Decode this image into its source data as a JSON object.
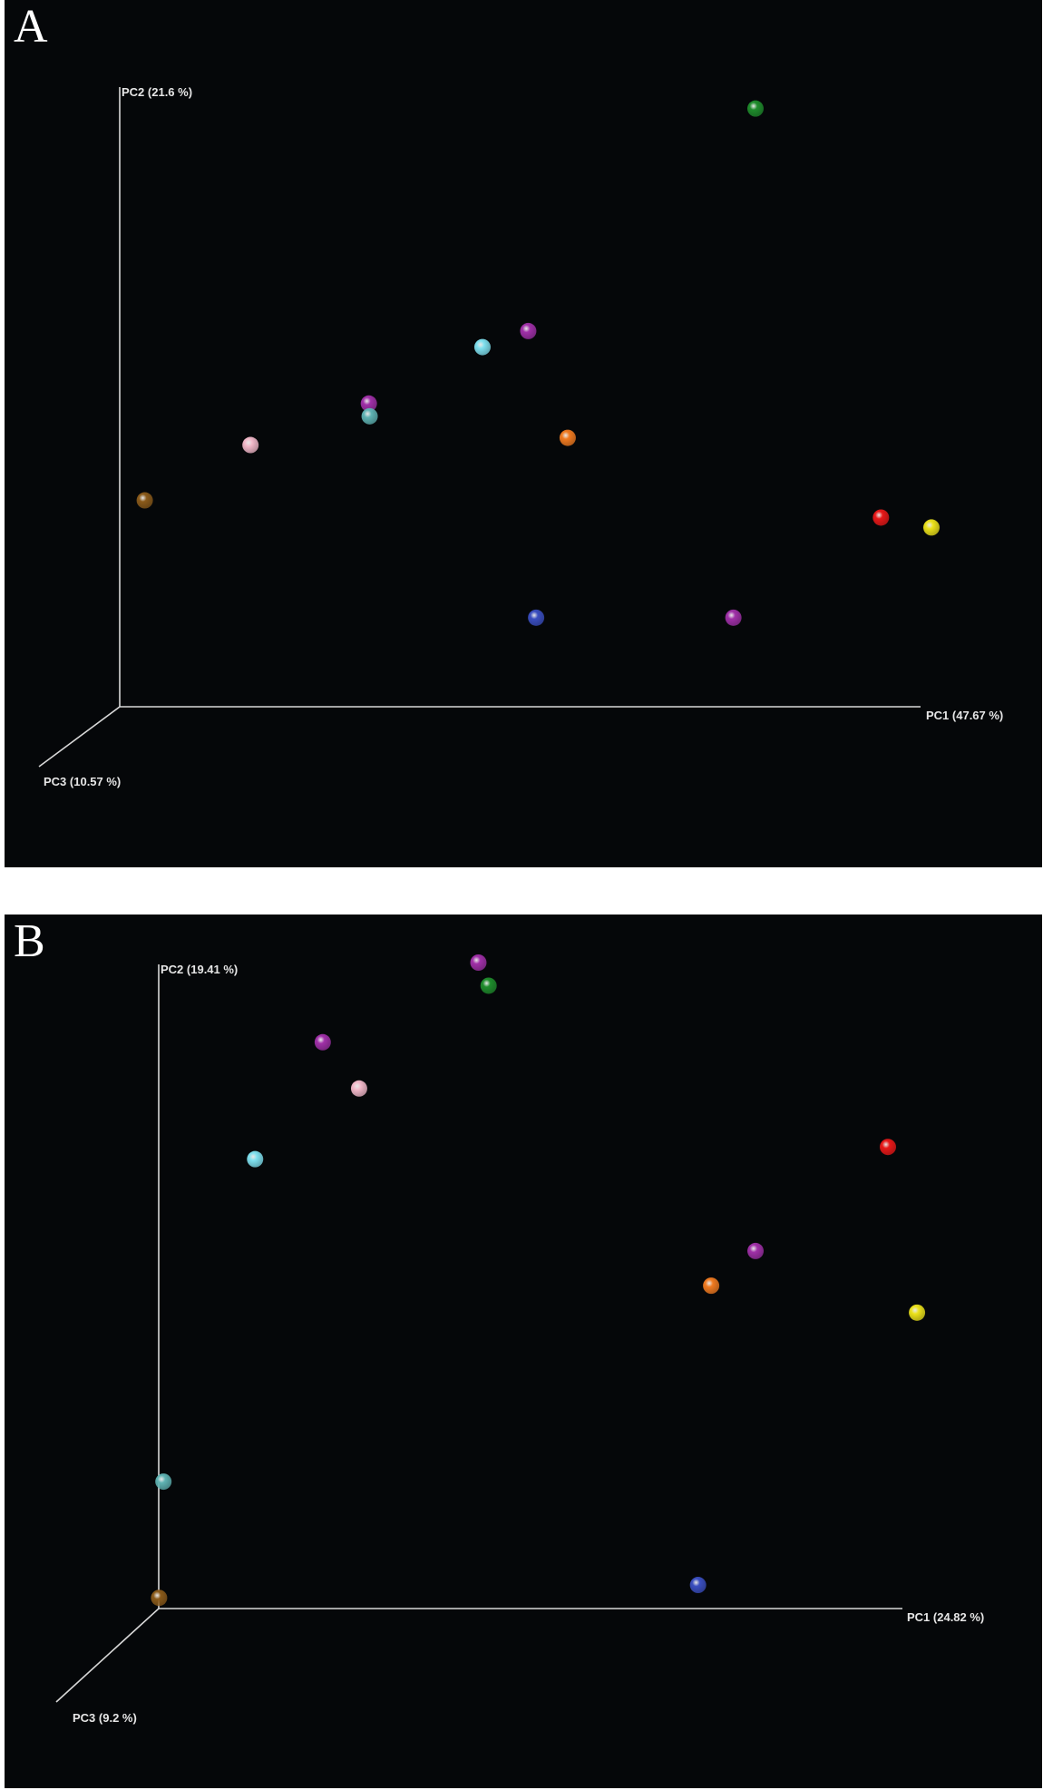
{
  "chart_data": [
    {
      "panel": "A",
      "type": "scatter",
      "axes": {
        "pc1": "PC1 (47.67 %)",
        "pc2": "PC2 (21.6 %)",
        "pc3": "PC3 (10.57 %)"
      },
      "xlim": [
        0,
        1
      ],
      "ylim": [
        0,
        1
      ],
      "points": [
        {
          "x": 0.777,
          "y": 0.994,
          "color": "#1f8c2c"
        },
        {
          "x": 0.489,
          "y": 0.592,
          "color": "#a030a8"
        },
        {
          "x": 0.431,
          "y": 0.563,
          "color": "#7fe0ef"
        },
        {
          "x": 0.287,
          "y": 0.461,
          "color": "#a030a8"
        },
        {
          "x": 0.288,
          "y": 0.438,
          "color": "#5fb3b3"
        },
        {
          "x": 0.137,
          "y": 0.386,
          "color": "#f2b8c9"
        },
        {
          "x": 0.539,
          "y": 0.399,
          "color": "#f07a20"
        },
        {
          "x": 0.003,
          "y": 0.286,
          "color": "#8a5a1a"
        },
        {
          "x": 0.936,
          "y": 0.255,
          "color": "#e81818"
        },
        {
          "x": 1.0,
          "y": 0.237,
          "color": "#ece21a"
        },
        {
          "x": 0.499,
          "y": 0.074,
          "color": "#3a4ec0"
        },
        {
          "x": 0.749,
          "y": 0.074,
          "color": "#a030a8"
        }
      ]
    },
    {
      "panel": "B",
      "type": "scatter",
      "axes": {
        "pc1": "PC1 (24.82 %)",
        "pc2": "PC2 (19.41 %)",
        "pc3": "PC3 (9.2 %)"
      },
      "xlim": [
        0,
        1
      ],
      "ylim": [
        0,
        1
      ],
      "points": [
        {
          "x": 0.437,
          "y": 1.0,
          "color": "#a030a8"
        },
        {
          "x": 0.451,
          "y": 0.964,
          "color": "#1f8c2c"
        },
        {
          "x": 0.223,
          "y": 0.876,
          "color": "#a030a8"
        },
        {
          "x": 0.273,
          "y": 0.804,
          "color": "#f2b8c9"
        },
        {
          "x": 0.13,
          "y": 0.694,
          "color": "#7fe0ef"
        },
        {
          "x": 1.0,
          "y": 0.713,
          "color": "#e81818"
        },
        {
          "x": 0.818,
          "y": 0.551,
          "color": "#a030a8"
        },
        {
          "x": 0.757,
          "y": 0.497,
          "color": "#f07a20"
        },
        {
          "x": 1.04,
          "y": 0.455,
          "color": "#ece21a"
        },
        {
          "x": 0.004,
          "y": 0.192,
          "color": "#5fb3b3"
        },
        {
          "x": 0.739,
          "y": 0.031,
          "color": "#3a4ec0"
        },
        {
          "x": -0.002,
          "y": 0.011,
          "color": "#8a5a1a"
        }
      ]
    }
  ],
  "panels": [
    {
      "letter": "A"
    },
    {
      "letter": "B"
    }
  ]
}
